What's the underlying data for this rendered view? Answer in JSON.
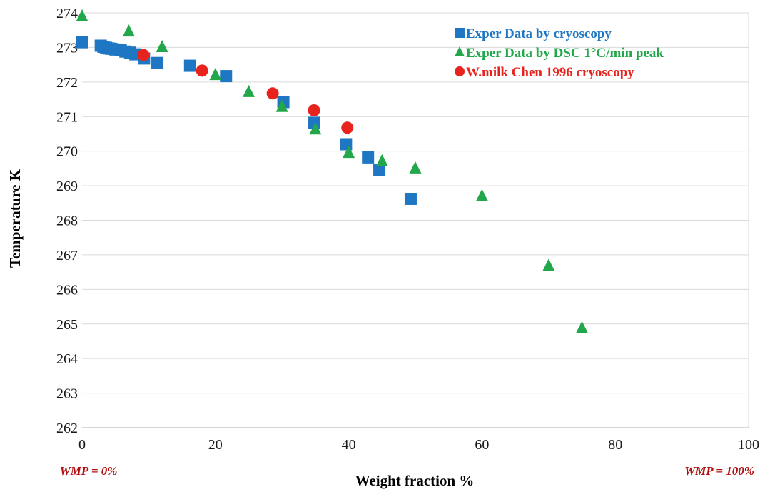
{
  "chart_data": {
    "type": "scatter",
    "xlabel": "Weight fraction %",
    "ylabel": "Temperature K",
    "xlim": [
      0,
      100
    ],
    "ylim": [
      262,
      274
    ],
    "x_ticks": [
      0,
      20,
      40,
      60,
      80,
      100
    ],
    "y_ticks": [
      262,
      263,
      264,
      265,
      266,
      267,
      268,
      269,
      270,
      271,
      272,
      273,
      274
    ],
    "grid": "horizontal major gridlines",
    "legend_position": "top-right",
    "annotations": {
      "left": "WMP = 0%",
      "right": "WMP = 100%"
    },
    "series": [
      {
        "name": "Exper Data by cryoscopy",
        "marker": "square",
        "color": "#1f77c4",
        "points": [
          [
            0,
            273.15
          ],
          [
            2.8,
            273.05
          ],
          [
            3.2,
            273.02
          ],
          [
            3.6,
            272.99
          ],
          [
            4.0,
            272.97
          ],
          [
            4.4,
            272.96
          ],
          [
            5.0,
            272.94
          ],
          [
            5.8,
            272.92
          ],
          [
            6.5,
            272.88
          ],
          [
            7.2,
            272.85
          ],
          [
            8.0,
            272.8
          ],
          [
            9.3,
            272.68
          ],
          [
            11.3,
            272.55
          ],
          [
            16.2,
            272.47
          ],
          [
            21.6,
            272.17
          ],
          [
            30.2,
            271.42
          ],
          [
            34.8,
            270.82
          ],
          [
            39.6,
            270.2
          ],
          [
            42.9,
            269.82
          ],
          [
            44.6,
            269.45
          ],
          [
            49.3,
            268.62
          ]
        ]
      },
      {
        "name": "Exper Data by DSC 1°C/min peak",
        "marker": "triangle",
        "color": "#22a84a",
        "points": [
          [
            0,
            273.92
          ],
          [
            7,
            273.48
          ],
          [
            12,
            273.03
          ],
          [
            20,
            272.22
          ],
          [
            25,
            271.73
          ],
          [
            30,
            271.3
          ],
          [
            35,
            270.65
          ],
          [
            40,
            269.97
          ],
          [
            45,
            269.73
          ],
          [
            50,
            269.52
          ],
          [
            60,
            268.72
          ],
          [
            70,
            266.7
          ],
          [
            75,
            264.9
          ]
        ]
      },
      {
        "name": "W.milk Chen 1996 cryoscopy",
        "marker": "circle",
        "color": "#e8231e",
        "points": [
          [
            9.2,
            272.78
          ],
          [
            18,
            272.33
          ],
          [
            28.6,
            271.67
          ],
          [
            34.8,
            271.18
          ],
          [
            39.8,
            270.68
          ]
        ]
      }
    ]
  }
}
